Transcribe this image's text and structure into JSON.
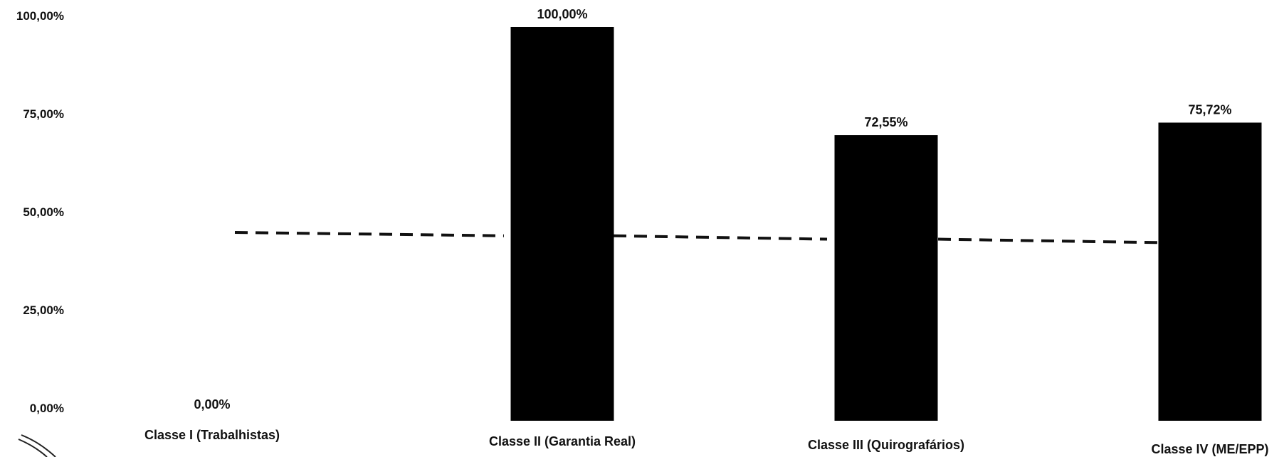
{
  "chart_data": {
    "type": "bar",
    "title": "",
    "xlabel": "",
    "ylabel": "",
    "ylim": [
      0,
      100
    ],
    "y_ticks": [
      0,
      25,
      50,
      75,
      100
    ],
    "y_tick_labels": [
      "0,00%",
      "25,00%",
      "50,00%",
      "75,00%",
      "100,00%"
    ],
    "categories": [
      "Classe I (Trabalhistas)",
      "Classe II (Garantia Real)",
      "Classe III (Quirografários)",
      "Classe IV (ME/EPP)"
    ],
    "values": [
      0,
      100,
      72.55,
      75.72
    ],
    "value_labels": [
      "0,00%",
      "100,00%",
      "72,55%",
      "75,72%"
    ],
    "reference_line": {
      "style": "dashed",
      "values": [
        50,
        49.5,
        49,
        48.5
      ]
    },
    "grid": false,
    "legend": "none",
    "colors": {
      "bar": "#000000",
      "reference_line": "#111111",
      "text": "#111111",
      "background": "#ffffff"
    }
  }
}
